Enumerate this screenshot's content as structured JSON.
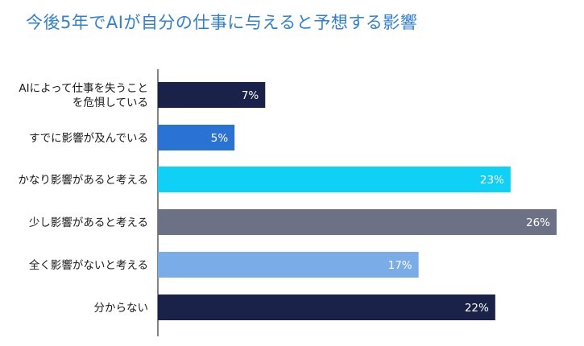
{
  "chart_data": {
    "type": "bar",
    "orientation": "horizontal",
    "title": "今後5年でAIが自分の仕事に与えると予想する影響",
    "categories": [
      "AIによって仕事を失うことを危惧している",
      "すでに影響が及んでいる",
      "かなり影響があると考える",
      "少し影響があると考える",
      "全く影響がないと考える",
      "分からない"
    ],
    "category_lines": [
      [
        "AIによって仕事を失うこと",
        "を危惧している"
      ],
      [
        "すでに影響が及んでいる"
      ],
      [
        "かなり影響があると考える"
      ],
      [
        "少し影響があると考える"
      ],
      [
        "全く影響がないと考える"
      ],
      [
        "分からない"
      ]
    ],
    "values": [
      7,
      5,
      23,
      26,
      17,
      22
    ],
    "value_labels": [
      "7%",
      "5%",
      "23%",
      "26%",
      "17%",
      "22%"
    ],
    "colors": [
      "#1a2249",
      "#2a73d4",
      "#0fd0f5",
      "#6c7186",
      "#7aace8",
      "#1a2249"
    ],
    "xlim": [
      0,
      26
    ],
    "xlabel": "",
    "ylabel": "",
    "grid": false,
    "legend": "none"
  }
}
